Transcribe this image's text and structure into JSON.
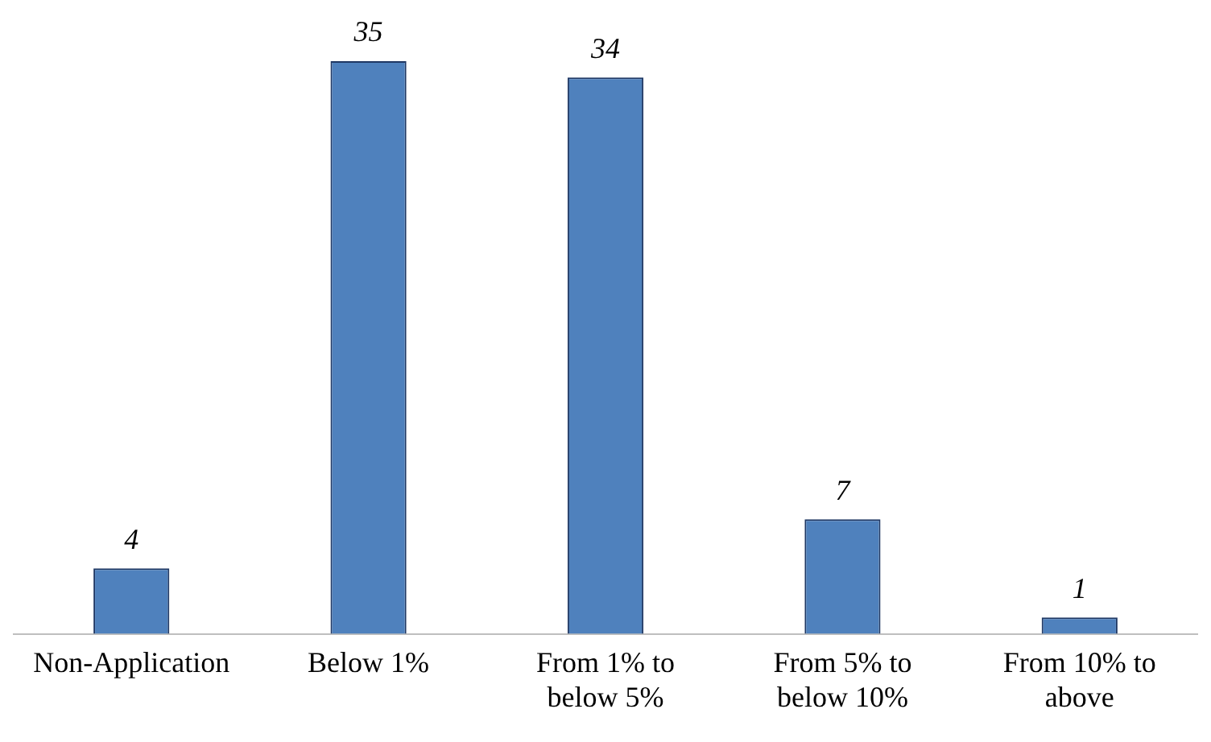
{
  "chart_data": {
    "type": "bar",
    "categories": [
      "Non-Application",
      "Below 1%",
      "From 1% to below 5%",
      "From 5% to below 10%",
      "From 10% to above"
    ],
    "values": [
      4,
      35,
      34,
      7,
      1
    ],
    "color": "#4f81bd",
    "data_labels": true,
    "tick_labels": "x",
    "grid": false,
    "legend": false
  }
}
